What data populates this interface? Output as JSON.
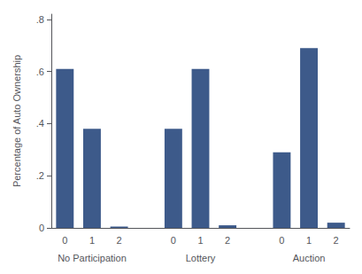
{
  "chart_data": {
    "type": "bar",
    "groups": [
      "No Participation",
      "Lottery",
      "Auction"
    ],
    "categories": [
      0,
      1,
      2
    ],
    "values": [
      [
        0.61,
        0.38,
        0.005
      ],
      [
        0.38,
        0.61,
        0.01
      ],
      [
        0.29,
        0.69,
        0.02
      ]
    ],
    "color": "#3d5a8a",
    "ylabel": "Percentage of Auto Ownership",
    "ylim": [
      0,
      0.82
    ],
    "yticks": [
      0,
      {
        "value": 0.2,
        "label": ".2"
      },
      {
        "value": 0.4,
        "label": ".4"
      },
      {
        "value": 0.6,
        "label": ".6"
      },
      {
        "value": 0.8,
        "label": ".8"
      }
    ],
    "grid": false
  }
}
